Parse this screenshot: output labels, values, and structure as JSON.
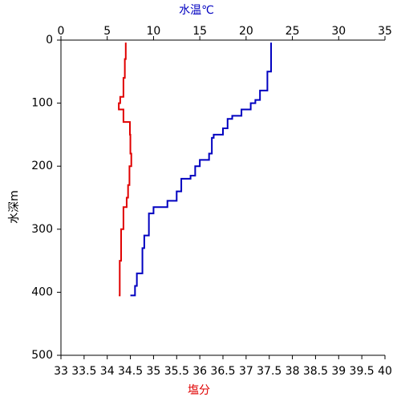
{
  "chart_data": {
    "type": "line",
    "x_label": "塩分",
    "x2_label": "水温℃",
    "y_label": "水深m",
    "xlim": [
      33,
      40
    ],
    "xticks": [
      33,
      33.5,
      34,
      34.5,
      35,
      35.5,
      36,
      36.5,
      37,
      37.5,
      38,
      38.5,
      39,
      39.5,
      40
    ],
    "x2lim": [
      0,
      35
    ],
    "x2ticks": [
      0,
      5,
      10,
      15,
      20,
      25,
      30,
      35
    ],
    "ylim": [
      0,
      500
    ],
    "yticks": [
      0,
      100,
      200,
      300,
      400,
      500
    ],
    "y_inverted": true,
    "series": [
      {
        "color": "#0000c0",
        "axis": "x2",
        "depth": [
          4,
          30,
          50,
          80,
          95,
          100,
          110,
          120,
          125,
          140,
          150,
          155,
          180,
          190,
          200,
          215,
          220,
          240,
          255,
          265,
          275,
          300,
          310,
          330,
          370,
          390,
          405
        ],
        "values": [
          22.7,
          22.7,
          22.3,
          21.5,
          21,
          20.5,
          19.5,
          18.5,
          18,
          17.5,
          16.5,
          16.3,
          16,
          15,
          14.5,
          14,
          13,
          12.5,
          11.5,
          10,
          9.5,
          9.5,
          9,
          8.8,
          8.2,
          8,
          7.5
        ]
      },
      {
        "color": "#e00000",
        "axis": "x",
        "depth": [
          4,
          30,
          60,
          90,
          100,
          110,
          130,
          150,
          180,
          200,
          230,
          250,
          265,
          300,
          350,
          405
        ],
        "values": [
          34.4,
          34.38,
          34.35,
          34.28,
          34.25,
          34.35,
          34.49,
          34.5,
          34.52,
          34.48,
          34.45,
          34.42,
          34.35,
          34.3,
          34.27,
          34.25
        ]
      }
    ]
  }
}
